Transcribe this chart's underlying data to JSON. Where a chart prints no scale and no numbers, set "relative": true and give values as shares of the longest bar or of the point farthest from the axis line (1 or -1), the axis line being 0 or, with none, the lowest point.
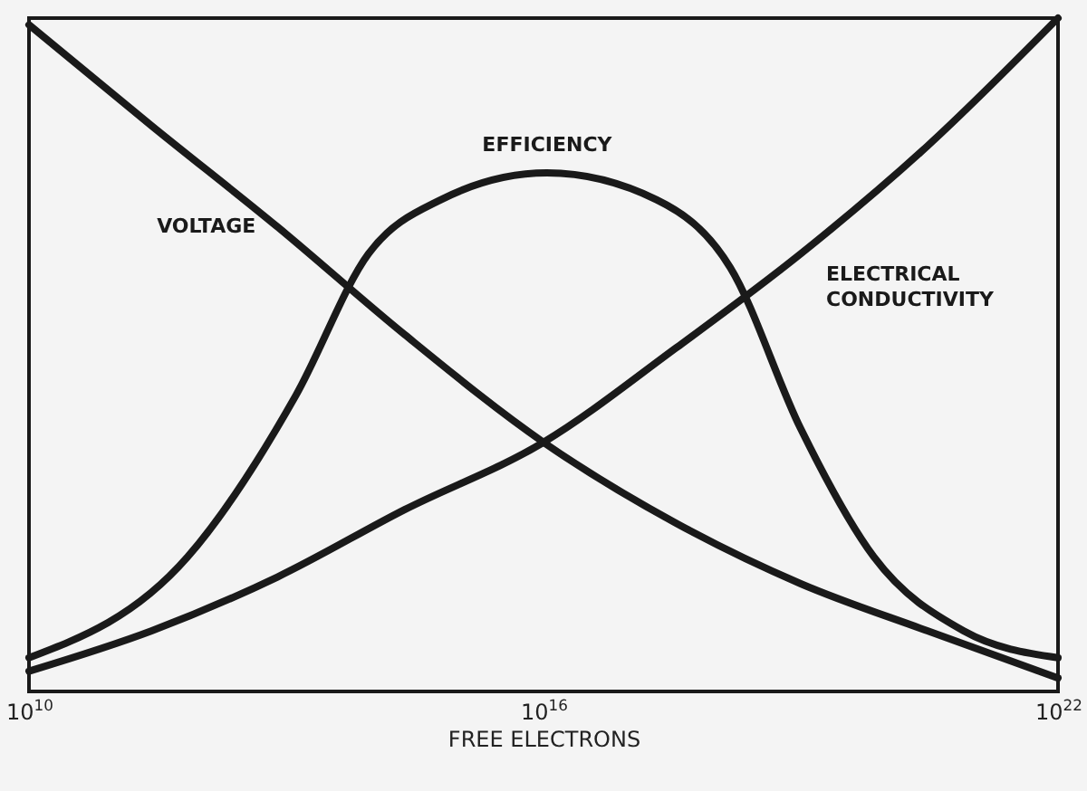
{
  "chart_data": {
    "type": "line",
    "xlabel": "FREE ELECTRONS",
    "log": "x",
    "relative": true,
    "grid": false,
    "marker": "none",
    "line_style": "solid",
    "xlim": [
      10000000000.0,
      1e+22
    ],
    "xticks": [
      {
        "value": 10000000000.0,
        "label": "10$^{10}$"
      },
      {
        "value": 1e+16,
        "label": "10$^{16}$"
      },
      {
        "value": 1e+22,
        "label": "10$^{22}$"
      }
    ],
    "series": [
      {
        "name": "VOLTAGE",
        "color": "#1a1a1a",
        "x": [
          10000000000.0,
          270000000000.0,
          7900000000000.0,
          240000000000000.0,
          1e+16,
          3.5e+17,
          1e+19,
          3e+20,
          1e+22
        ],
        "values": [
          0.99,
          0.84,
          0.69,
          0.53,
          0.37,
          0.25,
          0.16,
          0.09,
          0.02
        ]
      },
      {
        "name": "EFFICIENCY",
        "color": "#1a1a1a",
        "x": [
          10000000000.0,
          710000000000.0,
          13000000000000.0,
          91000000000000.0,
          630000000000000.0,
          1.1e+16,
          2.1e+17,
          1.5e+18,
          1e+19,
          7.1e+19,
          7.9e+20,
          1e+22
        ],
        "values": [
          0.05,
          0.2,
          0.44,
          0.65,
          0.73,
          0.77,
          0.73,
          0.63,
          0.39,
          0.2,
          0.09,
          0.05
        ]
      },
      {
        "name": "ELECTRICAL CONDUCTIVITY",
        "color": "#1a1a1a",
        "x": [
          10000000000.0,
          270000000000.0,
          7900000000000.0,
          240000000000000.0,
          1e+16,
          3.5e+17,
          1e+19,
          3e+20,
          1e+22
        ],
        "values": [
          0.03,
          0.09,
          0.17,
          0.27,
          0.37,
          0.51,
          0.65,
          0.81,
          1.0
        ]
      }
    ]
  }
}
